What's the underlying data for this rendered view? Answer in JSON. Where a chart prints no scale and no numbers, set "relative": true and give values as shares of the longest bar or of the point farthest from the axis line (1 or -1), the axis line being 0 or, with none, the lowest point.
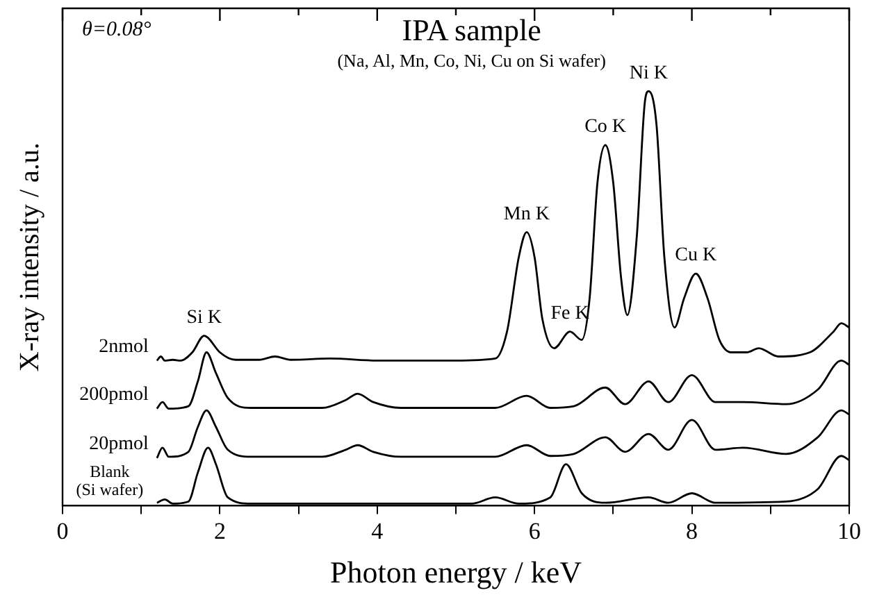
{
  "chart_data": {
    "type": "line",
    "relative": true,
    "title": "IPA sample",
    "subtitle": "(Na, Al, Mn, Co, Ni, Cu on Si wafer)",
    "xlabel": "Photon energy / keV",
    "ylabel": "X-ray intensity / a.u.",
    "xlim": [
      0,
      10
    ],
    "xticks": [
      0,
      {
        "value": 1,
        "label": null
      },
      2,
      {
        "value": 3,
        "label": null
      },
      4,
      {
        "value": 5,
        "label": null
      },
      6,
      {
        "value": 7,
        "label": null
      },
      8,
      {
        "value": 9,
        "label": null
      },
      10
    ],
    "grid": false,
    "legend": false,
    "marker": "none",
    "line_style": "solid",
    "annotations": [
      "θ=0.08°",
      {
        "text": "Si K",
        "x": 1.8,
        "y": 0.41
      },
      {
        "text": "Mn K",
        "x": 5.9,
        "y": 0.66
      },
      {
        "text": "Fe K",
        "x": 6.45,
        "y": 0.42
      },
      {
        "text": "Co K",
        "x": 6.9,
        "y": 0.87
      },
      {
        "text": "Ni K",
        "x": 7.45,
        "y": 1.0
      },
      {
        "text": "Cu K",
        "x": 8.05,
        "y": 0.56
      }
    ],
    "series": [
      {
        "name": "2nmol",
        "color": "#000000",
        "x": [
          1.2,
          1.25,
          1.3,
          1.4,
          1.5,
          1.65,
          1.8,
          1.85,
          2.0,
          2.2,
          2.5,
          2.7,
          2.9,
          3.4,
          4,
          5,
          5.5,
          5.65,
          5.8,
          5.9,
          6.0,
          6.1,
          6.25,
          6.45,
          6.6,
          6.7,
          6.8,
          6.9,
          7.0,
          7.1,
          7.18,
          7.3,
          7.4,
          7.45,
          7.55,
          7.65,
          7.78,
          7.9,
          8.05,
          8.2,
          8.35,
          8.5,
          8.7,
          8.85,
          9.1,
          9.5,
          9.8,
          9.9,
          10
        ],
        "values": [
          0.35,
          0.36,
          0.35,
          0.352,
          0.35,
          0.37,
          0.41,
          0.405,
          0.37,
          0.352,
          0.352,
          0.36,
          0.352,
          0.355,
          0.35,
          0.35,
          0.355,
          0.42,
          0.6,
          0.66,
          0.6,
          0.45,
          0.38,
          0.42,
          0.4,
          0.5,
          0.78,
          0.87,
          0.78,
          0.55,
          0.46,
          0.65,
          0.97,
          1.0,
          0.92,
          0.6,
          0.43,
          0.5,
          0.56,
          0.5,
          0.4,
          0.37,
          0.37,
          0.38,
          0.36,
          0.37,
          0.42,
          0.44,
          0.43
        ]
      },
      {
        "name": "200pmol",
        "color": "#000000",
        "x": [
          1.2,
          1.27,
          1.35,
          1.6,
          1.72,
          1.83,
          1.95,
          2.1,
          2.4,
          3.3,
          3.6,
          3.75,
          3.95,
          4.3,
          5.5,
          5.9,
          6.2,
          6.5,
          6.9,
          7.15,
          7.45,
          7.7,
          8.0,
          8.3,
          8.65,
          9.2,
          9.6,
          9.9,
          10
        ],
        "values": [
          0.234,
          0.25,
          0.234,
          0.24,
          0.3,
          0.37,
          0.32,
          0.26,
          0.236,
          0.236,
          0.255,
          0.27,
          0.25,
          0.236,
          0.236,
          0.265,
          0.236,
          0.24,
          0.285,
          0.245,
          0.3,
          0.25,
          0.315,
          0.25,
          0.25,
          0.245,
          0.28,
          0.35,
          0.34
        ]
      },
      {
        "name": "20pmol",
        "color": "#000000",
        "x": [
          1.2,
          1.27,
          1.35,
          1.6,
          1.72,
          1.83,
          1.95,
          2.1,
          2.4,
          3.3,
          3.6,
          3.75,
          3.95,
          4.3,
          5.5,
          5.9,
          6.2,
          6.5,
          6.9,
          7.15,
          7.45,
          7.7,
          8.0,
          8.3,
          8.65,
          9.2,
          9.6,
          9.9,
          10
        ],
        "values": [
          0.115,
          0.14,
          0.118,
          0.13,
          0.19,
          0.23,
          0.19,
          0.135,
          0.118,
          0.118,
          0.135,
          0.146,
          0.13,
          0.118,
          0.118,
          0.146,
          0.12,
          0.125,
          0.165,
          0.13,
          0.173,
          0.135,
          0.207,
          0.135,
          0.14,
          0.125,
          0.165,
          0.23,
          0.22
        ]
      },
      {
        "name": "Blank (Si wafer)",
        "color": "#000000",
        "x": [
          1.2,
          1.3,
          1.4,
          1.6,
          1.72,
          1.85,
          1.95,
          2.1,
          2.4,
          5.2,
          5.5,
          5.8,
          6.2,
          6.4,
          6.6,
          6.9,
          7.45,
          7.7,
          8.0,
          8.3,
          9.2,
          9.6,
          9.9,
          10
        ],
        "values": [
          0.007,
          0.015,
          0.005,
          0.01,
          0.08,
          0.14,
          0.1,
          0.02,
          0.005,
          0.005,
          0.02,
          0.005,
          0.02,
          0.1,
          0.03,
          0.007,
          0.02,
          0.007,
          0.03,
          0.007,
          0.01,
          0.04,
          0.12,
          0.11
        ]
      }
    ]
  }
}
